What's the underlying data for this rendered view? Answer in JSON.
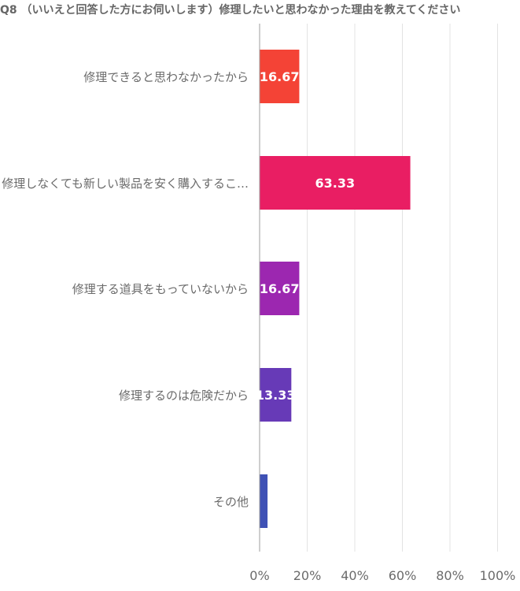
{
  "chart_data": {
    "type": "bar",
    "orientation": "horizontal",
    "title": "Q8 （いいえと回答した方にお伺いします）修理したいと思わなかった理由を教えてください",
    "categories": [
      "修理できると思わなかったから",
      "修理しなくても新しい製品を安く購入するこ…",
      "修理する道具をもっていないから",
      "修理するのは危険だから",
      "その他"
    ],
    "values": [
      16.67,
      63.33,
      16.67,
      13.33,
      3.33
    ],
    "data_labels": [
      "16.67",
      "63.33",
      "16.67",
      "13.33",
      ""
    ],
    "colors": [
      "#F44336",
      "#E91E63",
      "#9C27B0",
      "#673AB7",
      "#3F51B5"
    ],
    "xlim": [
      0,
      100
    ],
    "x_ticks": [
      "0%",
      "20%",
      "40%",
      "60%",
      "80%",
      "100%"
    ],
    "grid": true,
    "legend": "none"
  }
}
